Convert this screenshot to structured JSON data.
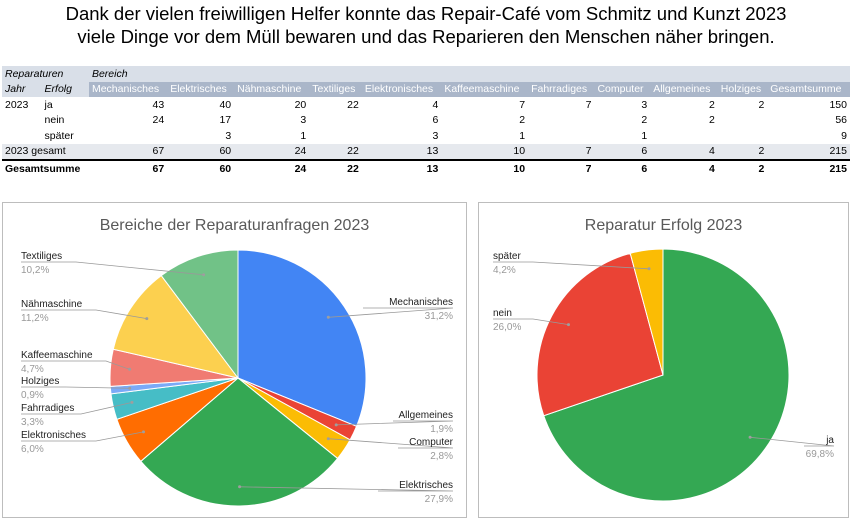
{
  "headline": {
    "line1": "Dank der vielen freiwilligen Helfer konnte das Repair-Café vom Schmitz und Kunzt 2023",
    "line2": "viele Dinge vor dem Müll bewaren und das Reparieren den Menschen näher bringen."
  },
  "table": {
    "header_row1": {
      "reparaturen": "Reparaturen",
      "bereich": "Bereich"
    },
    "header_row2": {
      "jahr": "Jahr",
      "erfolg": "Erfolg"
    },
    "columns": [
      "Mechanisches",
      "Elektrisches",
      "Nähmaschine",
      "Textiliges",
      "Elektronisches",
      "Kaffeemaschine",
      "Fahrradiges",
      "Computer",
      "Allgemeines",
      "Holziges",
      "Gesamtsumme"
    ],
    "rows": [
      {
        "year": "2023",
        "label": "ja",
        "values": [
          "43",
          "40",
          "20",
          "22",
          "4",
          "7",
          "7",
          "3",
          "2",
          "2",
          "150"
        ]
      },
      {
        "year": "",
        "label": "nein",
        "values": [
          "24",
          "17",
          "3",
          "",
          "6",
          "2",
          "",
          "2",
          "2",
          "",
          "56"
        ]
      },
      {
        "year": "",
        "label": "später",
        "values": [
          "",
          "3",
          "1",
          "",
          "3",
          "1",
          "",
          "1",
          "",
          "",
          "9"
        ]
      }
    ],
    "subtotal": {
      "label": "2023 gesamt",
      "values": [
        "67",
        "60",
        "24",
        "22",
        "13",
        "10",
        "7",
        "6",
        "4",
        "2",
        "215"
      ]
    },
    "grand": {
      "label": "Gesamtsumme",
      "values": [
        "67",
        "60",
        "24",
        "22",
        "13",
        "10",
        "7",
        "6",
        "4",
        "2",
        "215"
      ]
    }
  },
  "chart_data": [
    {
      "type": "pie",
      "title": "Bereiche der Reparaturanfragen 2023",
      "slices": [
        {
          "label": "Mechanisches",
          "value": 67,
          "percent": "31,2%",
          "color": "#4285f4"
        },
        {
          "label": "Allgemeines",
          "value": 4,
          "percent": "1,9%",
          "color": "#ea4335"
        },
        {
          "label": "Computer",
          "value": 6,
          "percent": "2,8%",
          "color": "#fbbc04"
        },
        {
          "label": "Elektrisches",
          "value": 60,
          "percent": "27,9%",
          "color": "#34a853"
        },
        {
          "label": "Elektronisches",
          "value": 13,
          "percent": "6,0%",
          "color": "#ff6d01"
        },
        {
          "label": "Fahrradiges",
          "value": 7,
          "percent": "3,3%",
          "color": "#46bdc6"
        },
        {
          "label": "Holziges",
          "value": 2,
          "percent": "0,9%",
          "color": "#7baaf7"
        },
        {
          "label": "Kaffeemaschine",
          "value": 10,
          "percent": "4,7%",
          "color": "#f07b72"
        },
        {
          "label": "Nähmaschine",
          "value": 24,
          "percent": "11,2%",
          "color": "#fcd04f"
        },
        {
          "label": "Textiliges",
          "value": 22,
          "percent": "10,2%",
          "color": "#71c287"
        }
      ]
    },
    {
      "type": "pie",
      "title": "Reparatur Erfolg 2023",
      "slices": [
        {
          "label": "ja",
          "value": 150,
          "percent": "69,8%",
          "color": "#34a853"
        },
        {
          "label": "nein",
          "value": 56,
          "percent": "26,0%",
          "color": "#ea4335"
        },
        {
          "label": "später",
          "value": 9,
          "percent": "4,2%",
          "color": "#fbbc04"
        }
      ]
    }
  ]
}
